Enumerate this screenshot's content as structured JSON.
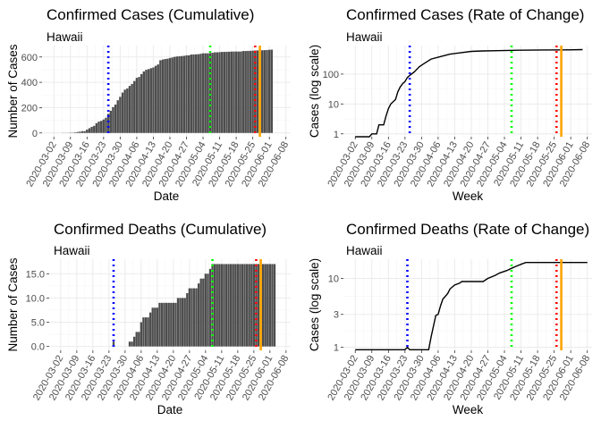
{
  "colors": {
    "bar": "#4d4d4d",
    "line": "#000000",
    "vline_blue": "#0000ff",
    "vline_green": "#00ff00",
    "vline_red": "#ff0000",
    "vline_orange": "#ffa500"
  },
  "x_ticks": [
    "2020-03-02",
    "2020-03-09",
    "2020-03-16",
    "2020-03-23",
    "2020-03-30",
    "2020-04-06",
    "2020-04-13",
    "2020-04-20",
    "2020-04-27",
    "2020-05-04",
    "2020-05-11",
    "2020-05-18",
    "2020-05-25",
    "2020-06-01",
    "2020-06-08"
  ],
  "chart_data": [
    {
      "id": "cases_cum",
      "type": "bar",
      "title": "Confirmed Cases (Cumulative)",
      "subtitle": "Hawaii",
      "xlabel": "Date",
      "ylabel": "Number of Cases",
      "xlim": [
        "2020-02-26",
        "2020-06-10"
      ],
      "ylim": [
        -30,
        690
      ],
      "y_ticks": [
        0,
        200,
        400,
        600
      ],
      "grid": true,
      "vlines": [
        {
          "x": "2020-03-25",
          "color": "blue",
          "style": "dotted"
        },
        {
          "x": "2020-05-07",
          "color": "green",
          "style": "dotted"
        },
        {
          "x": "2020-05-26",
          "color": "red",
          "style": "dotted"
        },
        {
          "x": "2020-05-28",
          "color": "orange",
          "style": "solid"
        }
      ],
      "start_date": "2020-03-06",
      "values": [
        1,
        1,
        1,
        2,
        2,
        4,
        7,
        10,
        14,
        14,
        26,
        37,
        48,
        56,
        77,
        90,
        95,
        106,
        120,
        151,
        175,
        204,
        224,
        258,
        285,
        319,
        342,
        351,
        371,
        387,
        410,
        435,
        442,
        465,
        486,
        499,
        504,
        511,
        517,
        530,
        541,
        574,
        580,
        584,
        586,
        592,
        596,
        601,
        604,
        606,
        607,
        609,
        613,
        613,
        619,
        620,
        621,
        622,
        625,
        629,
        629,
        629,
        631,
        633,
        637,
        637,
        638,
        640,
        640,
        641,
        641,
        643,
        643,
        643,
        643,
        643,
        647,
        647,
        648,
        649,
        650,
        651,
        652,
        652,
        653,
        654,
        655,
        657,
        658
      ]
    },
    {
      "id": "cases_rate",
      "type": "line",
      "title": "Confirmed Cases (Rate of Change)",
      "subtitle": "Hawaii",
      "xlabel": "Week",
      "ylabel": "Cases (log scale)",
      "xlim": [
        "2020-02-26",
        "2020-06-10"
      ],
      "ylim": [
        0.8,
        900
      ],
      "log_scale": true,
      "y_ticks": [
        1,
        10,
        100
      ],
      "grid": true,
      "vlines": [
        {
          "x": "2020-03-25",
          "color": "blue",
          "style": "dotted"
        },
        {
          "x": "2020-05-07",
          "color": "green",
          "style": "dotted"
        },
        {
          "x": "2020-05-26",
          "color": "red",
          "style": "dotted"
        },
        {
          "x": "2020-05-28",
          "color": "orange",
          "style": "solid"
        }
      ],
      "points": [
        [
          "2020-03-02",
          0.8
        ],
        [
          "2020-03-08",
          0.8
        ],
        [
          "2020-03-09",
          1
        ],
        [
          "2020-03-11",
          1
        ],
        [
          "2020-03-12",
          2
        ],
        [
          "2020-03-14",
          2
        ],
        [
          "2020-03-15",
          4
        ],
        [
          "2020-03-16",
          7
        ],
        [
          "2020-03-17",
          10
        ],
        [
          "2020-03-19",
          14
        ],
        [
          "2020-03-20",
          26
        ],
        [
          "2020-03-21",
          37
        ],
        [
          "2020-03-22",
          48
        ],
        [
          "2020-03-23",
          56
        ],
        [
          "2020-03-24",
          77
        ],
        [
          "2020-03-25",
          90
        ],
        [
          "2020-03-27",
          120
        ],
        [
          "2020-03-29",
          175
        ],
        [
          "2020-03-31",
          224
        ],
        [
          "2020-04-03",
          319
        ],
        [
          "2020-04-07",
          387
        ],
        [
          "2020-04-11",
          465
        ],
        [
          "2020-04-15",
          511
        ],
        [
          "2020-04-20",
          574
        ],
        [
          "2020-04-25",
          596
        ],
        [
          "2020-05-01",
          609
        ],
        [
          "2020-05-10",
          629
        ],
        [
          "2020-05-20",
          641
        ],
        [
          "2020-05-30",
          648
        ],
        [
          "2020-06-06",
          658
        ]
      ]
    },
    {
      "id": "deaths_cum",
      "type": "bar",
      "title": "Confirmed Deaths (Cumulative)",
      "subtitle": "Hawaii",
      "xlabel": "Date",
      "ylabel": "Number of Cases",
      "xlim": [
        "2020-02-26",
        "2020-06-10"
      ],
      "ylim": [
        -0.8,
        18
      ],
      "y_ticks": [
        0.0,
        5.0,
        10.0,
        15.0
      ],
      "y_tick_decimals": 1,
      "grid": true,
      "vlines": [
        {
          "x": "2020-03-25",
          "color": "blue",
          "style": "dotted"
        },
        {
          "x": "2020-05-07",
          "color": "green",
          "style": "dotted"
        },
        {
          "x": "2020-05-26",
          "color": "red",
          "style": "dotted"
        },
        {
          "x": "2020-05-28",
          "color": "orange",
          "style": "solid"
        }
      ],
      "start_date": "2020-03-24",
      "values": [
        0,
        1,
        0,
        0,
        0,
        0,
        0,
        0,
        1,
        1,
        2,
        3,
        3,
        5,
        6,
        6,
        6,
        7,
        8,
        8,
        8,
        9,
        9,
        9,
        9,
        9,
        9,
        9,
        9,
        10,
        10,
        10,
        10,
        11,
        12,
        12,
        12,
        12,
        13,
        14,
        14,
        15,
        15,
        16,
        17,
        17,
        17,
        17,
        17,
        17,
        17,
        17,
        17,
        17,
        17,
        17,
        17,
        17,
        17,
        17,
        17,
        17,
        17,
        17,
        17,
        17,
        17,
        17,
        17,
        17,
        17,
        17
      ]
    },
    {
      "id": "deaths_rate",
      "type": "line",
      "title": "Confirmed Deaths (Rate of Change)",
      "subtitle": "Hawaii",
      "xlabel": "Week",
      "ylabel": "Cases (log scale)",
      "xlim": [
        "2020-02-26",
        "2020-06-10"
      ],
      "ylim": [
        0.9,
        19
      ],
      "log_scale": true,
      "y_ticks": [
        1,
        3,
        10
      ],
      "grid": true,
      "vlines": [
        {
          "x": "2020-03-24",
          "color": "blue",
          "style": "dotted"
        },
        {
          "x": "2020-05-07",
          "color": "green",
          "style": "dotted"
        },
        {
          "x": "2020-05-26",
          "color": "red",
          "style": "dotted"
        },
        {
          "x": "2020-05-28",
          "color": "orange",
          "style": "solid"
        }
      ],
      "points": [
        [
          "2020-03-02",
          0.92
        ],
        [
          "2020-03-23",
          0.92
        ],
        [
          "2020-03-24",
          1
        ],
        [
          "2020-03-25",
          0.92
        ],
        [
          "2020-04-02",
          0.92
        ],
        [
          "2020-04-03",
          1.4
        ],
        [
          "2020-04-05",
          2.9
        ],
        [
          "2020-04-06",
          3
        ],
        [
          "2020-04-07",
          4
        ],
        [
          "2020-04-08",
          5
        ],
        [
          "2020-04-10",
          6
        ],
        [
          "2020-04-11",
          7
        ],
        [
          "2020-04-13",
          8
        ],
        [
          "2020-04-15",
          8.5
        ],
        [
          "2020-04-16",
          9
        ],
        [
          "2020-04-25",
          9
        ],
        [
          "2020-04-27",
          10
        ],
        [
          "2020-04-30",
          11
        ],
        [
          "2020-05-02",
          12
        ],
        [
          "2020-05-05",
          13
        ],
        [
          "2020-05-07",
          14
        ],
        [
          "2020-05-09",
          15
        ],
        [
          "2020-05-11",
          16
        ],
        [
          "2020-05-13",
          17
        ],
        [
          "2020-06-08",
          17
        ]
      ]
    }
  ]
}
